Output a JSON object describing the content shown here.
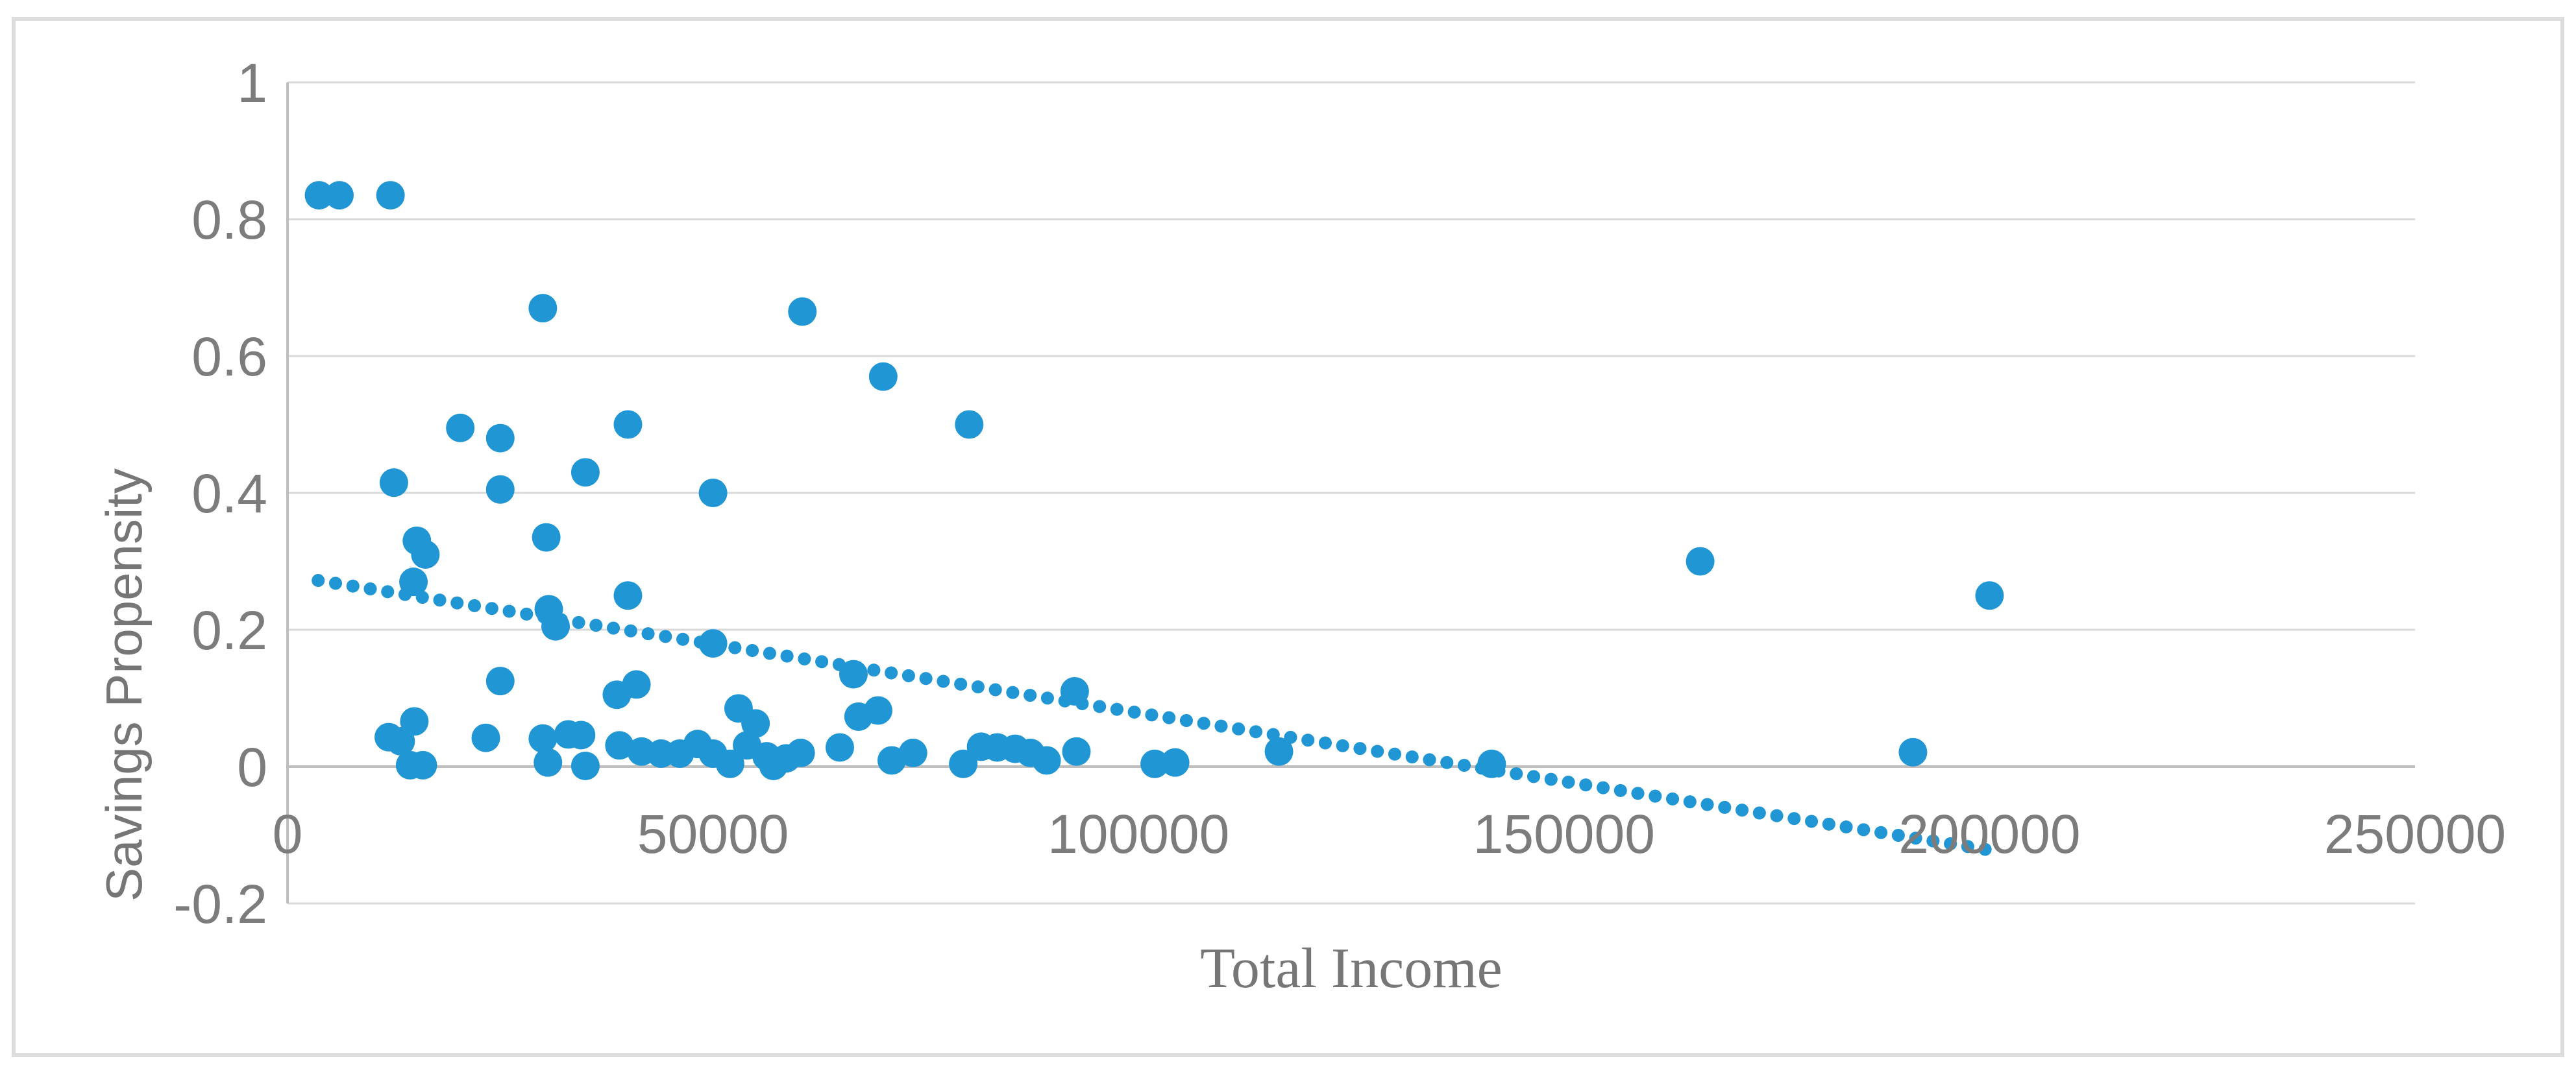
{
  "figure": {
    "background": "#ffffff",
    "border_color": "#dcdcdc",
    "plot": {
      "grid_color": "#d9d9d9",
      "axis_color": "#bfbfbf",
      "tick_text_color": "#7c7c7c",
      "title_text_color": "#767676"
    }
  },
  "chart_data": {
    "type": "scatter",
    "title": "",
    "xlabel": "Total Income",
    "ylabel": "Savings Propensity",
    "xlim": [
      0,
      250000
    ],
    "ylim": [
      -0.2,
      1
    ],
    "grid": true,
    "legend_position": "none",
    "marker_color": "#2196d5",
    "x_tick_values": [
      0,
      50000,
      100000,
      150000,
      200000,
      250000
    ],
    "x_tick_labels": [
      "0",
      "50000",
      "100000",
      "150000",
      "200000",
      "250000"
    ],
    "y_tick_values": [
      1,
      0.8,
      0.6,
      0.4,
      0.2,
      0,
      -0.2
    ],
    "y_tick_labels": [
      "1",
      "0.8",
      "0.6",
      "0.4",
      "0.2",
      "0",
      "-0.2"
    ],
    "points": [
      [
        3700,
        0.835
      ],
      [
        6100,
        0.835
      ],
      [
        12100,
        0.835
      ],
      [
        30000,
        0.67
      ],
      [
        60500,
        0.665
      ],
      [
        70000,
        0.57
      ],
      [
        80100,
        0.5
      ],
      [
        20300,
        0.495
      ],
      [
        40000,
        0.5
      ],
      [
        25000,
        0.48
      ],
      [
        35000,
        0.43
      ],
      [
        12500,
        0.415
      ],
      [
        25000,
        0.405
      ],
      [
        50000,
        0.4
      ],
      [
        30400,
        0.335
      ],
      [
        15200,
        0.33
      ],
      [
        16200,
        0.31
      ],
      [
        14800,
        0.27
      ],
      [
        40000,
        0.25
      ],
      [
        166000,
        0.3
      ],
      [
        200000,
        0.25
      ],
      [
        30700,
        0.23
      ],
      [
        31500,
        0.205
      ],
      [
        50000,
        0.18
      ],
      [
        66500,
        0.135
      ],
      [
        25000,
        0.125
      ],
      [
        41000,
        0.12
      ],
      [
        92500,
        0.11
      ],
      [
        38700,
        0.105
      ],
      [
        53000,
        0.085
      ],
      [
        69400,
        0.082
      ],
      [
        67100,
        0.073
      ],
      [
        55000,
        0.063
      ],
      [
        14900,
        0.066
      ],
      [
        11900,
        0.043
      ],
      [
        13300,
        0.037
      ],
      [
        23300,
        0.042
      ],
      [
        30000,
        0.041
      ],
      [
        33000,
        0.047
      ],
      [
        34500,
        0.046
      ],
      [
        39000,
        0.031
      ],
      [
        48200,
        0.033
      ],
      [
        54000,
        0.031
      ],
      [
        41600,
        0.022
      ],
      [
        43900,
        0.019
      ],
      [
        46100,
        0.019
      ],
      [
        50000,
        0.019
      ],
      [
        56300,
        0.015
      ],
      [
        58600,
        0.012
      ],
      [
        60300,
        0.02
      ],
      [
        64900,
        0.028
      ],
      [
        73500,
        0.02
      ],
      [
        81500,
        0.029
      ],
      [
        83400,
        0.028
      ],
      [
        85500,
        0.026
      ],
      [
        87300,
        0.02
      ],
      [
        92700,
        0.022
      ],
      [
        116500,
        0.022
      ],
      [
        191000,
        0.021
      ],
      [
        14400,
        0.002
      ],
      [
        15900,
        0.002
      ],
      [
        30600,
        0.006
      ],
      [
        35000,
        0.001
      ],
      [
        52000,
        0.004
      ],
      [
        57100,
        0.001
      ],
      [
        71000,
        0.009
      ],
      [
        79400,
        0.004
      ],
      [
        89200,
        0.009
      ],
      [
        101900,
        0.004
      ],
      [
        104300,
        0.006
      ],
      [
        141500,
        0.004
      ]
    ],
    "trendline": {
      "style": "dotted",
      "color": "#2196d5",
      "x1": 3600,
      "y1": 0.272,
      "x2": 199500,
      "y2": -0.121
    }
  }
}
